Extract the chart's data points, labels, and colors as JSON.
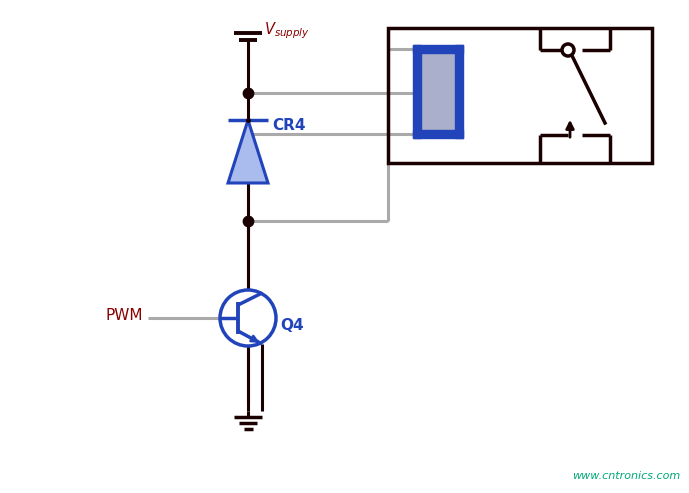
{
  "bg_color": "#ffffff",
  "dark_color": "#1a0000",
  "blue_color": "#2244bb",
  "gray_color": "#aaaaaa",
  "green_color": "#00aa77",
  "cr4_label": "CR4",
  "q4_label": "Q4",
  "pwm_label": "PWM",
  "watermark": "www.cntronics.com"
}
